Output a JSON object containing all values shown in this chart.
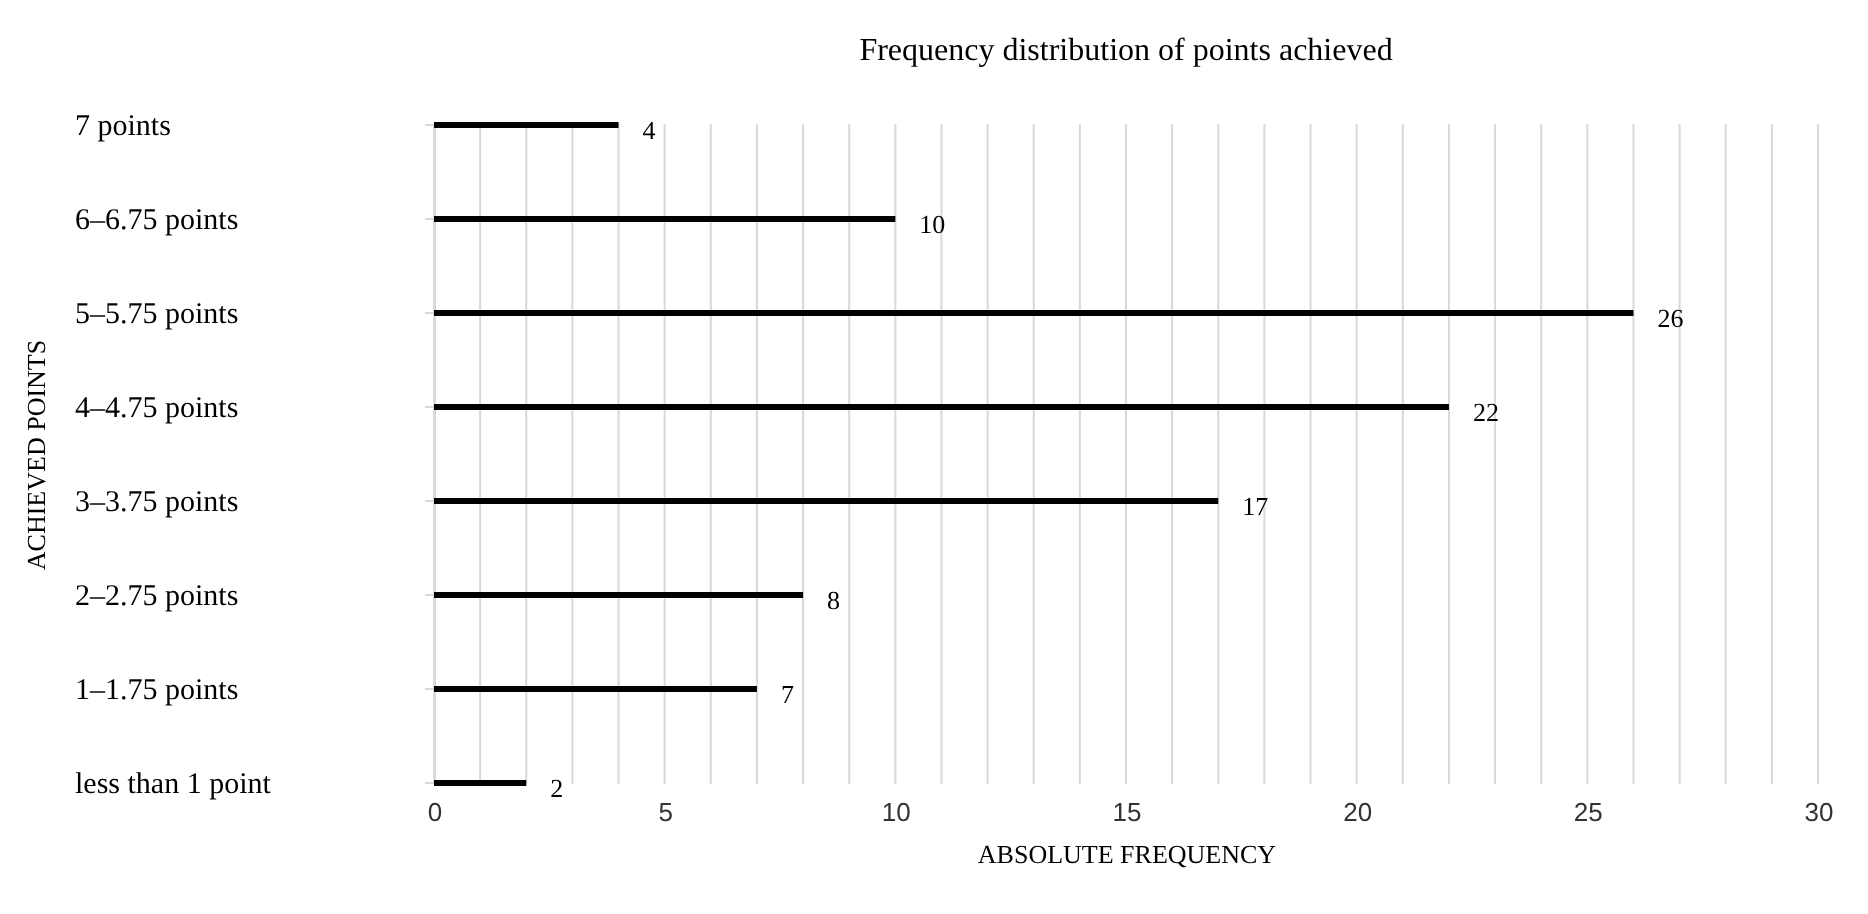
{
  "chart_data": {
    "type": "bar",
    "orientation": "horizontal",
    "title": "Frequency distribution of points achieved",
    "xlabel": "ABSOLUTE FREQUENCY",
    "ylabel": "ACHIEVED POINTS",
    "categories": [
      "7 points",
      "6–6.75 points",
      "5–5.75 points",
      "4–4.75 points",
      "3–3.75 points",
      "2–2.75 points",
      "1–1.75 points",
      "less than 1 point"
    ],
    "values": [
      4,
      10,
      26,
      22,
      17,
      8,
      7,
      2
    ],
    "color": "#000000",
    "xlim": [
      0,
      30
    ],
    "xticks": [
      0,
      {
        "value": 1,
        "label": null
      },
      {
        "value": 2,
        "label": null
      },
      {
        "value": 3,
        "label": null
      },
      {
        "value": 4,
        "label": null
      },
      5,
      {
        "value": 6,
        "label": null
      },
      {
        "value": 7,
        "label": null
      },
      {
        "value": 8,
        "label": null
      },
      {
        "value": 9,
        "label": null
      },
      10,
      {
        "value": 11,
        "label": null
      },
      {
        "value": 12,
        "label": null
      },
      {
        "value": 13,
        "label": null
      },
      {
        "value": 14,
        "label": null
      },
      15,
      {
        "value": 16,
        "label": null
      },
      {
        "value": 17,
        "label": null
      },
      {
        "value": 18,
        "label": null
      },
      {
        "value": 19,
        "label": null
      },
      20,
      {
        "value": 21,
        "label": null
      },
      {
        "value": 22,
        "label": null
      },
      {
        "value": 23,
        "label": null
      },
      {
        "value": 24,
        "label": null
      },
      25,
      {
        "value": 26,
        "label": null
      },
      {
        "value": 27,
        "label": null
      },
      {
        "value": 28,
        "label": null
      },
      {
        "value": 29,
        "label": null
      },
      30
    ],
    "grid": "x",
    "data_labels": true
  }
}
